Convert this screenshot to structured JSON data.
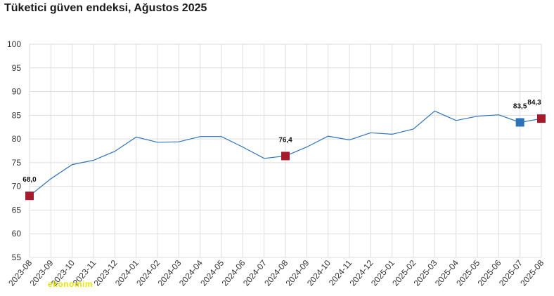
{
  "title": "Tüketici güven endeksi, Ağustos 2025",
  "watermark": "ekonomim",
  "colors": {
    "line": "#2b72b8",
    "highlight_red": "#a51b2c",
    "highlight_blue": "#2b72b8",
    "grid": "#dddddd"
  },
  "chart_data": {
    "type": "line",
    "title": "Tüketici güven endeksi, Ağustos 2025",
    "xlabel": "",
    "ylabel": "",
    "ylim": [
      55,
      100
    ],
    "yticks": [
      55,
      60,
      65,
      70,
      75,
      80,
      85,
      90,
      95,
      100
    ],
    "grid": true,
    "categories": [
      "2023-08",
      "2023-09",
      "2023-10",
      "2023-11",
      "2023-12",
      "2024-01",
      "2024-02",
      "2024-03",
      "2024-04",
      "2024-05",
      "2024-06",
      "2024-07",
      "2024-08",
      "2024-09",
      "2024-10",
      "2024-11",
      "2024-12",
      "2025-01",
      "2025-02",
      "2025-03",
      "2025-04",
      "2025-05",
      "2025-06",
      "2025-07",
      "2025-08"
    ],
    "series": [
      {
        "values": [
          68.0,
          71.6,
          74.6,
          75.5,
          77.4,
          80.4,
          79.3,
          79.4,
          80.5,
          80.5,
          78.3,
          75.9,
          76.4,
          78.3,
          80.6,
          79.8,
          81.3,
          81.0,
          82.1,
          85.9,
          83.9,
          84.8,
          85.1,
          83.5,
          84.3
        ]
      }
    ],
    "highlighted_points": [
      {
        "category": "2023-08",
        "value": 68.0,
        "label": "68,0",
        "color": "red"
      },
      {
        "category": "2024-08",
        "value": 76.4,
        "label": "76,4",
        "color": "red"
      },
      {
        "category": "2025-07",
        "value": 83.5,
        "label": "83,5",
        "color": "blue"
      },
      {
        "category": "2025-08",
        "value": 84.3,
        "label": "84,3",
        "color": "red"
      }
    ]
  }
}
